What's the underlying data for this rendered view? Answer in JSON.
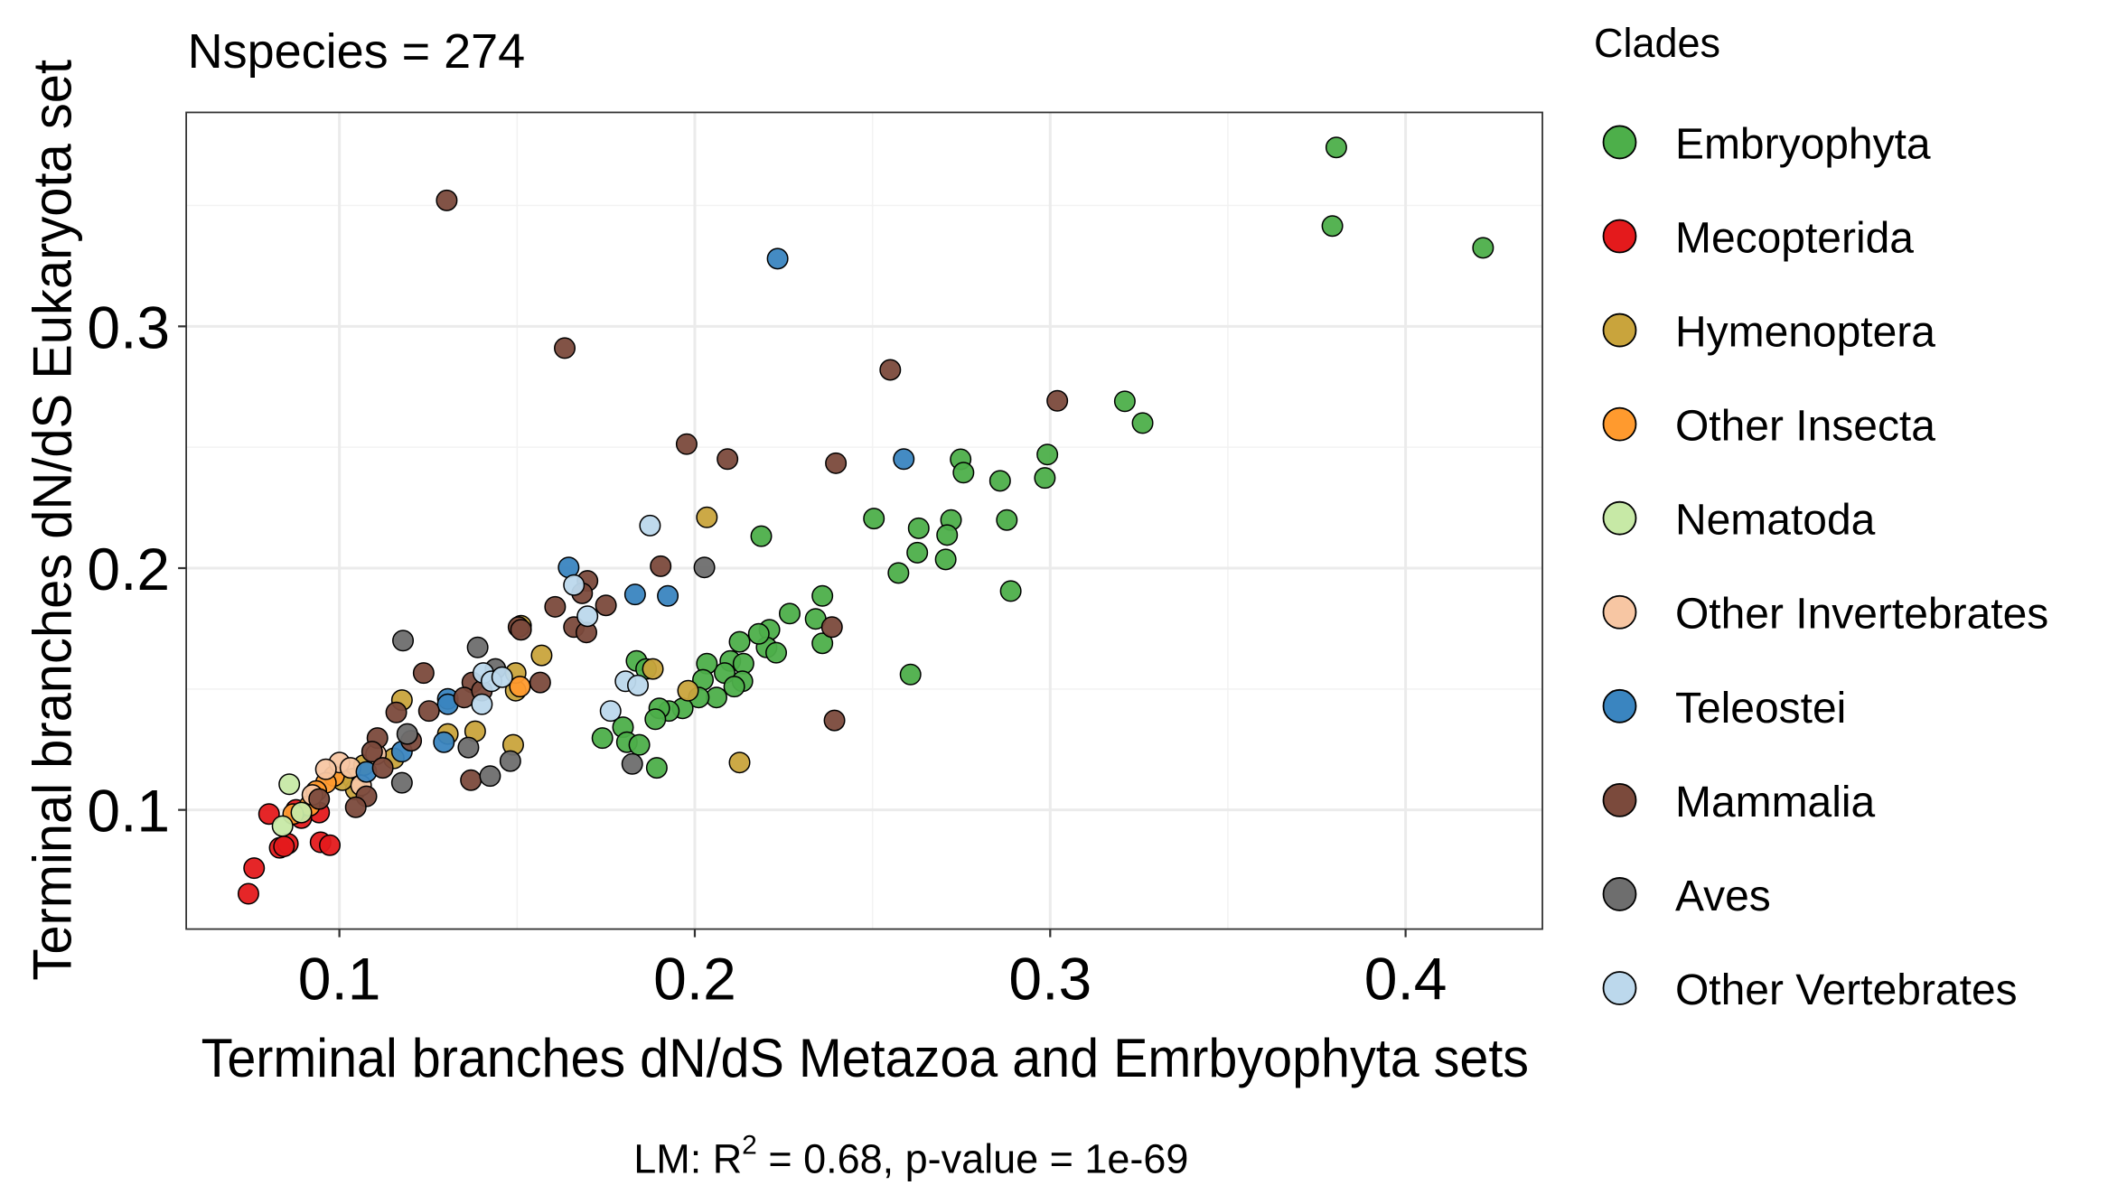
{
  "chart_data": {
    "type": "scatter",
    "title": "Nspecies = 274",
    "x_label": "Terminal branches dN/dS Metazoa and Emrbyophyta sets",
    "y_label": "Terminal branches dN/dS Eukaryota set",
    "annotation": [
      "LM:  R",
      "2",
      " = 0.68, p-value = 1e-69"
    ],
    "legend_title": "Clades",
    "legend_position": "right",
    "grid": true,
    "xlim": [
      0.0569,
      0.4385
    ],
    "ylim": [
      0.0507,
      0.3885
    ],
    "xticks": [
      0.1,
      0.2,
      0.3,
      0.4
    ],
    "yticks": [
      0.1,
      0.2,
      0.3
    ],
    "series": [
      {
        "name": "Embryophyta",
        "color": "#4daf4a",
        "x": [
          0.3805,
          0.3794,
          0.4218,
          0.321,
          0.326,
          0.2992,
          0.2985,
          0.2748,
          0.2756,
          0.2859,
          0.2721,
          0.271,
          0.2878,
          0.2706,
          0.263,
          0.2626,
          0.2504,
          0.2573,
          0.2889,
          0.2607,
          0.2187,
          0.2359,
          0.234,
          0.2359,
          0.2267,
          0.221,
          0.2202,
          0.2229,
          0.218,
          0.2126,
          0.21,
          0.2137,
          0.2084,
          0.2134,
          0.2034,
          0.2023,
          0.2111,
          0.2061,
          0.2011,
          0.1966,
          0.1927,
          0.19,
          0.1889,
          0.1836,
          0.1863,
          0.1798,
          0.174,
          0.1809,
          0.1844,
          0.1893
        ],
        "values": [
          0.374,
          0.3415,
          0.3325,
          0.269,
          0.26,
          0.247,
          0.2373,
          0.245,
          0.2395,
          0.2361,
          0.2199,
          0.2137,
          0.2199,
          0.2036,
          0.2165,
          0.2064,
          0.2205,
          0.198,
          0.1905,
          0.156,
          0.2132,
          0.1885,
          0.179,
          0.1689,
          0.1812,
          0.1745,
          0.1672,
          0.165,
          0.1728,
          0.1695,
          0.1616,
          0.1605,
          0.1566,
          0.1532,
          0.1605,
          0.1538,
          0.151,
          0.1465,
          0.1465,
          0.142,
          0.1409,
          0.142,
          0.1375,
          0.1616,
          0.1583,
          0.1342,
          0.1297,
          0.128,
          0.1269,
          0.1174
        ]
      },
      {
        "name": "Mecopterida",
        "color": "#e41a1c",
        "x": [
          0.0744,
          0.076,
          0.0802,
          0.0832,
          0.0855,
          0.0844,
          0.0947,
          0.0973,
          0.0943,
          0.0893,
          0.0878
        ],
        "values": [
          0.0653,
          0.0759,
          0.0983,
          0.0843,
          0.086,
          0.0849,
          0.0866,
          0.0854,
          0.0989,
          0.0966,
          0.1
        ]
      },
      {
        "name": "Hymenoptera",
        "color": "#c9a43c",
        "x": [
          0.2034,
          0.2126,
          0.1882,
          0.1981,
          0.1569,
          0.1511,
          0.1496,
          0.1489,
          0.1382,
          0.1305,
          0.1176,
          0.1038,
          0.1046,
          0.1008,
          0.1069,
          0.1153,
          0.1496
        ],
        "values": [
          0.221,
          0.1196,
          0.1583,
          0.1493,
          0.1639,
          0.1762,
          0.1493,
          0.1269,
          0.1325,
          0.1314,
          0.1454,
          0.1129,
          0.1084,
          0.1123,
          0.1185,
          0.1213,
          0.1566
        ]
      },
      {
        "name": "Other Insecta",
        "color": "#ff9a2e",
        "x": [
          0.0985,
          0.0962,
          0.0916,
          0.087,
          0.1508,
          0.0935
        ],
        "values": [
          0.114,
          0.1112,
          0.1017,
          0.0983,
          0.151,
          0.1078
        ]
      },
      {
        "name": "Nematoda",
        "color": "#c7e9a6",
        "x": [
          0.0859,
          0.084,
          0.0893
        ],
        "values": [
          0.1106,
          0.0933,
          0.0989
        ]
      },
      {
        "name": "Other Invertebrates",
        "color": "#f7c6a3",
        "x": [
          0.1,
          0.1031,
          0.0962,
          0.1103,
          0.1061,
          0.0924
        ],
        "values": [
          0.1196,
          0.1174,
          0.1168,
          0.123,
          0.1101,
          0.1062
        ]
      },
      {
        "name": "Teleostei",
        "color": "#3a85c0",
        "x": [
          0.2233,
          0.2588,
          0.1645,
          0.1832,
          0.1924,
          0.1305,
          0.1294,
          0.1176,
          0.1076,
          0.1305
        ],
        "values": [
          0.328,
          0.2451,
          0.2003,
          0.1891,
          0.1885,
          0.1459,
          0.128,
          0.1241,
          0.1157,
          0.1437
        ]
      },
      {
        "name": "Mammalia",
        "color": "#7b4a3c",
        "x": [
          0.1302,
          0.1634,
          0.255,
          0.302,
          0.1977,
          0.2092,
          0.2397,
          0.1904,
          0.175,
          0.1698,
          0.1683,
          0.1607,
          0.166,
          0.1695,
          0.1504,
          0.1511,
          0.2386,
          0.2393,
          0.1565,
          0.1237,
          0.1374,
          0.116,
          0.1351,
          0.1252,
          0.1107,
          0.1092,
          0.1122,
          0.1076,
          0.1046,
          0.1202,
          0.137,
          0.0943,
          0.1401
        ],
        "values": [
          0.3521,
          0.291,
          0.282,
          0.2692,
          0.2513,
          0.2451,
          0.2434,
          0.2008,
          0.1846,
          0.1947,
          0.1896,
          0.184,
          0.1756,
          0.1734,
          0.1756,
          0.1745,
          0.1756,
          0.137,
          0.1527,
          0.1566,
          0.1527,
          0.1403,
          0.1465,
          0.1409,
          0.1297,
          0.1241,
          0.1174,
          0.1056,
          0.1011,
          0.1286,
          0.1123,
          0.1045,
          0.1493
        ]
      },
      {
        "name": "Aves",
        "color": "#6e6e6e",
        "x": [
          0.1179,
          0.1389,
          0.2027,
          0.1824,
          0.1481,
          0.1424,
          0.1176,
          0.1363,
          0.1191,
          0.1439
        ],
        "values": [
          0.17,
          0.1672,
          0.2003,
          0.119,
          0.1202,
          0.114,
          0.1112,
          0.1258,
          0.1314,
          0.1583
        ]
      },
      {
        "name": "Other Vertebrates",
        "color": "#bcd8ec",
        "x": [
          0.1874,
          0.166,
          0.1698,
          0.1763,
          0.1805,
          0.184,
          0.1405,
          0.1428,
          0.1458,
          0.1401
        ],
        "values": [
          0.2176,
          0.193,
          0.1801,
          0.1409,
          0.1532,
          0.1515,
          0.1566,
          0.1532,
          0.1549,
          0.1437
        ]
      }
    ]
  }
}
